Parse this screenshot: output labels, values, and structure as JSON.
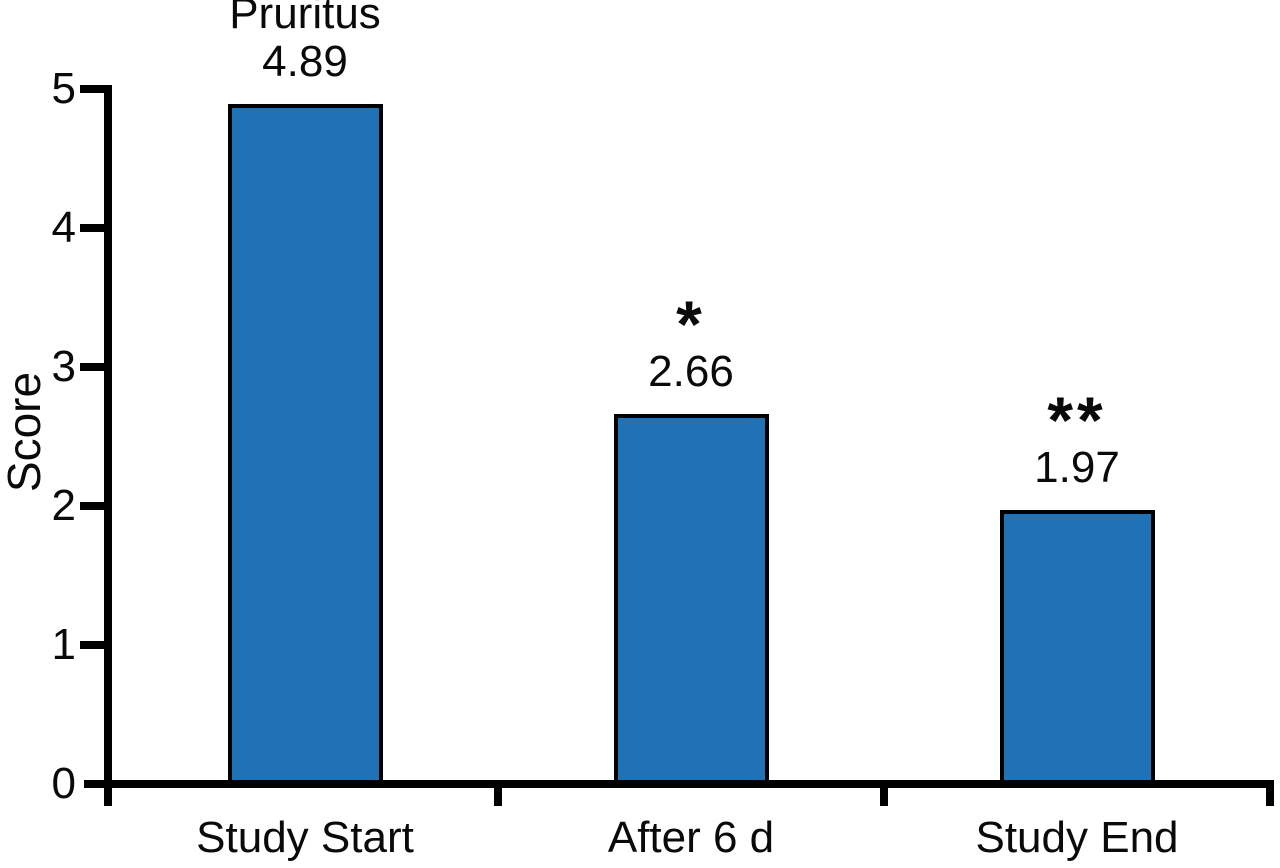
{
  "chart_data": {
    "type": "bar",
    "title": "Pruritus",
    "ylabel": "Score",
    "xlabel": "",
    "categories": [
      "Study Start",
      "After 6 d",
      "Study End"
    ],
    "values": [
      4.89,
      2.66,
      1.97
    ],
    "value_labels": [
      "4.89",
      "2.66",
      "1.97"
    ],
    "bar_annotations": [
      "Pruritus",
      "*",
      "**"
    ],
    "significance_markers": [
      "",
      "*",
      "**"
    ],
    "yticks": [
      "0",
      "1",
      "2",
      "3",
      "4",
      "5"
    ],
    "ylim": [
      0,
      5
    ],
    "grid": "off",
    "legend": "none",
    "colors": {
      "bar_fill": "#1F72B5",
      "bar_border": "#000000",
      "axis": "#000000",
      "text": "#0A0A0A",
      "background": "#FFFFFF"
    }
  }
}
